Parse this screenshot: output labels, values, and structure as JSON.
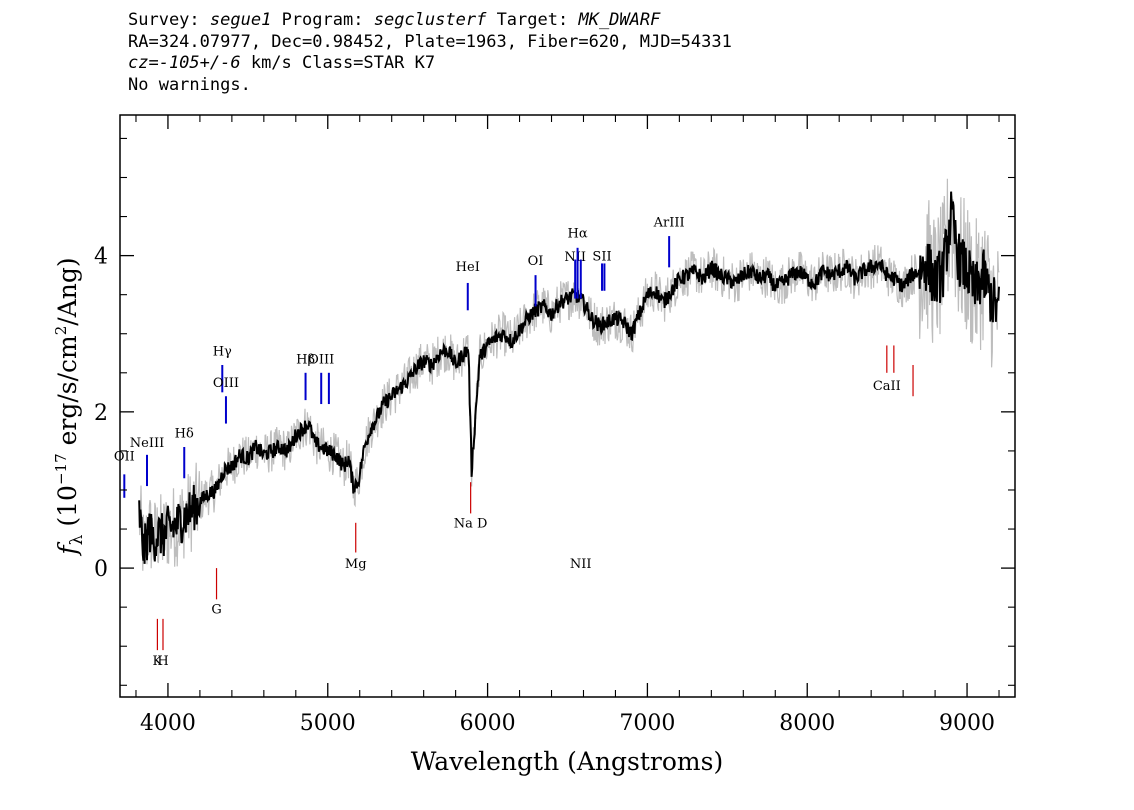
{
  "header": {
    "line1": {
      "survey_label": "Survey:",
      "survey": "segue1",
      "program_label": "Program:",
      "program": "segclusterf",
      "target_label": "Target:",
      "target": "MK_DWARF"
    },
    "line2": "RA=324.07977, Dec=0.98452, Plate=1963, Fiber=620, MJD=54331",
    "line3": {
      "cz": "cz=-105+/-6",
      "rest": " km/s Class=STAR K7"
    },
    "line4": "No warnings."
  },
  "chart_data": {
    "type": "line",
    "xlabel": "Wavelength (Angstroms)",
    "ylabel_parts": {
      "f": "f",
      "sub": "λ",
      "pre": " (10",
      "exp1": "−17",
      "mid": " erg/s/cm",
      "exp2": "2",
      "post": "/Ang)"
    },
    "xlim": [
      3700,
      9300
    ],
    "ylim": [
      -1.65,
      5.8
    ],
    "x_ticks": [
      4000,
      5000,
      6000,
      7000,
      8000,
      9000
    ],
    "x_tick_labels": [
      "4000",
      "5000",
      "6000",
      "7000",
      "8000",
      "9000"
    ],
    "y_ticks": [
      0,
      2,
      4
    ],
    "y_tick_labels": [
      "0",
      "2",
      "4"
    ],
    "colors": {
      "flux": "#000000",
      "error": "#bdbdbd",
      "emission": "#0000cc",
      "absorption": "#cc0000"
    },
    "series": [
      {
        "role": "flux",
        "x": [
          3820,
          3850,
          3880,
          3910,
          3940,
          3970,
          4000,
          4050,
          4100,
          4150,
          4200,
          4250,
          4300,
          4350,
          4400,
          4450,
          4500,
          4550,
          4600,
          4650,
          4700,
          4750,
          4800,
          4850,
          4880,
          4920,
          4960,
          5000,
          5050,
          5100,
          5130,
          5160,
          5190,
          5230,
          5270,
          5300,
          5350,
          5400,
          5450,
          5500,
          5550,
          5600,
          5650,
          5700,
          5750,
          5800,
          5850,
          5880,
          5900,
          5950,
          6000,
          6050,
          6100,
          6150,
          6200,
          6250,
          6300,
          6350,
          6400,
          6450,
          6500,
          6550,
          6600,
          6650,
          6700,
          6750,
          6800,
          6850,
          6900,
          6950,
          7000,
          7050,
          7100,
          7150,
          7200,
          7250,
          7300,
          7350,
          7400,
          7450,
          7500,
          7550,
          7600,
          7650,
          7700,
          7750,
          7800,
          7850,
          7900,
          7950,
          8000,
          8050,
          8100,
          8150,
          8200,
          8250,
          8300,
          8350,
          8400,
          8450,
          8500,
          8550,
          8600,
          8650,
          8700,
          8750,
          8800,
          8850,
          8900,
          8950,
          9000,
          9050,
          9100,
          9150,
          9200
        ],
        "y": [
          0.7,
          0.2,
          0.5,
          0.35,
          0.45,
          0.4,
          0.5,
          0.55,
          0.65,
          0.75,
          0.85,
          0.95,
          1.0,
          1.25,
          1.3,
          1.45,
          1.4,
          1.55,
          1.45,
          1.5,
          1.55,
          1.5,
          1.7,
          1.8,
          1.85,
          1.6,
          1.55,
          1.5,
          1.45,
          1.3,
          1.4,
          1.05,
          1.1,
          1.55,
          1.8,
          1.9,
          2.1,
          2.2,
          2.3,
          2.4,
          2.55,
          2.65,
          2.6,
          2.75,
          2.8,
          2.6,
          2.75,
          2.8,
          1.25,
          2.7,
          2.85,
          2.95,
          3.0,
          2.9,
          3.05,
          3.2,
          3.3,
          3.35,
          3.25,
          3.4,
          3.45,
          3.5,
          3.4,
          3.2,
          3.1,
          3.15,
          3.2,
          3.15,
          3.0,
          3.25,
          3.5,
          3.55,
          3.4,
          3.55,
          3.7,
          3.75,
          3.8,
          3.7,
          3.85,
          3.75,
          3.7,
          3.65,
          3.75,
          3.8,
          3.7,
          3.75,
          3.6,
          3.65,
          3.75,
          3.8,
          3.7,
          3.65,
          3.8,
          3.75,
          3.8,
          3.85,
          3.7,
          3.8,
          3.85,
          3.9,
          3.75,
          3.7,
          3.6,
          3.75,
          3.8,
          3.9,
          3.65,
          3.8,
          4.5,
          3.95,
          3.8,
          3.55,
          3.75,
          3.45,
          3.3
        ]
      }
    ],
    "line_markers": [
      {
        "label": "OII",
        "x": 3727,
        "y0": 0.9,
        "y1": 1.2,
        "kind": "emission",
        "label_y": 1.38
      },
      {
        "label": "NeIII",
        "x": 3869,
        "y0": 1.05,
        "y1": 1.45,
        "kind": "emission",
        "label_y": 1.55
      },
      {
        "label": "Hδ",
        "x": 4102,
        "y0": 1.15,
        "y1": 1.55,
        "kind": "emission",
        "label_y": 1.67
      },
      {
        "label": "Hγ",
        "x": 4340,
        "y0": 2.25,
        "y1": 2.6,
        "kind": "emission",
        "label_y": 2.72
      },
      {
        "label": "OIII",
        "x": 4363,
        "y0": 1.85,
        "y1": 2.2,
        "kind": "emission",
        "label_y": 2.32
      },
      {
        "label": "Hβ",
        "x": 4861,
        "y0": 2.15,
        "y1": 2.5,
        "kind": "emission",
        "label_y": 2.62
      },
      {
        "label": "OIII",
        "x": 4959,
        "y0": 2.1,
        "y1": 2.5,
        "kind": "emission",
        "label_y": 2.62
      },
      {
        "label": "",
        "x": 5007,
        "y0": 2.1,
        "y1": 2.5,
        "kind": "emission",
        "label_y": 0
      },
      {
        "label": "HeI",
        "x": 5876,
        "y0": 3.3,
        "y1": 3.65,
        "kind": "emission",
        "label_y": 3.8
      },
      {
        "label": "OI",
        "x": 6300,
        "y0": 3.35,
        "y1": 3.75,
        "kind": "emission",
        "label_y": 3.88
      },
      {
        "label": "NII",
        "x": 6548,
        "y0": 3.45,
        "y1": 3.95,
        "kind": "emission",
        "label_y": 3.93
      },
      {
        "label": "Hα",
        "x": 6563,
        "y0": 3.45,
        "y1": 4.1,
        "kind": "emission",
        "label_y": 4.23
      },
      {
        "label": "NII",
        "x": 6583,
        "y0": 3.45,
        "y1": 3.95,
        "kind": "emission",
        "label_y": 0
      },
      {
        "label": "SII",
        "x": 6716,
        "y0": 3.55,
        "y1": 3.9,
        "kind": "emission",
        "label_y": 3.94
      },
      {
        "label": "",
        "x": 6731,
        "y0": 3.55,
        "y1": 3.9,
        "kind": "emission",
        "label_y": 0
      },
      {
        "label": "ArIII",
        "x": 7136,
        "y0": 3.85,
        "y1": 4.25,
        "kind": "emission",
        "label_y": 4.37
      },
      {
        "label": "K",
        "x": 3934,
        "y0": -1.05,
        "y1": -0.65,
        "kind": "absorption",
        "label_y": -1.24
      },
      {
        "label": "H",
        "x": 3969,
        "y0": -1.05,
        "y1": -0.65,
        "kind": "absorption",
        "label_y": -1.24
      },
      {
        "label": "G",
        "x": 4304,
        "y0": -0.4,
        "y1": 0.0,
        "kind": "absorption",
        "label_y": -0.58
      },
      {
        "label": "Mg",
        "x": 5175,
        "y0": 0.2,
        "y1": 0.58,
        "kind": "absorption",
        "label_y": 0.0
      },
      {
        "label": "Na D",
        "x": 5894,
        "y0": 0.7,
        "y1": 1.1,
        "kind": "absorption",
        "label_y": 0.52
      },
      {
        "label": "CaII",
        "x": 8498,
        "y0": 2.5,
        "y1": 2.85,
        "kind": "absorption",
        "label_y": 2.28
      },
      {
        "label": "",
        "x": 8542,
        "y0": 2.5,
        "y1": 2.85,
        "kind": "absorption",
        "label_y": 0
      },
      {
        "label": "",
        "x": 8662,
        "y0": 2.2,
        "y1": 2.6,
        "kind": "absorption",
        "label_y": 0
      }
    ]
  }
}
